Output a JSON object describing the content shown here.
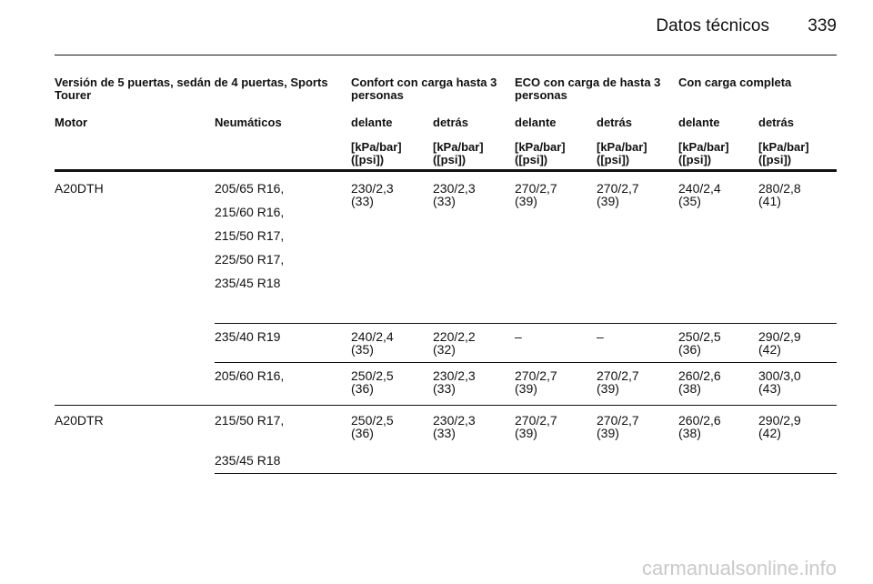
{
  "header": {
    "section": "Datos técnicos",
    "page": "339"
  },
  "table": {
    "group_headers": [
      "Versión de 5 puertas, sedán de 4 puertas, Sports Tourer",
      "Confort con carga hasta 3 personas",
      "ECO con carga de hasta 3 personas",
      "Con carga completa"
    ],
    "col_labels": [
      "Motor",
      "Neumáticos",
      "delante",
      "detrás",
      "delante",
      "detrás",
      "delante",
      "detrás"
    ],
    "unit_label": "[kPa/bar] ([psi])",
    "rows": [
      {
        "motor": "A20DTH",
        "tyres": [
          "205/65 R16,",
          "215/60 R16,",
          "215/50 R17,",
          "225/50 R17,",
          "235/45 R18"
        ],
        "values": [
          "230/2,3 (33)",
          "230/2,3 (33)",
          "270/2,7 (39)",
          "270/2,7 (39)",
          "240/2,4 (35)",
          "280/2,8 (41)"
        ]
      },
      {
        "motor": "",
        "tyres": [
          "235/40 R19"
        ],
        "values": [
          "240/2,4 (35)",
          "220/2,2 (32)",
          "–",
          "–",
          "250/2,5 (36)",
          "290/2,9 (42)"
        ]
      },
      {
        "motor": "",
        "tyres": [
          "205/60 R16,"
        ],
        "values": [
          "250/2,5 (36)",
          "230/2,3 (33)",
          "270/2,7 (39)",
          "270/2,7 (39)",
          "260/2,6 (38)",
          "300/3,0 (43)"
        ]
      },
      {
        "motor": "A20DTR",
        "tyres": [
          "215/50 R17,",
          "235/45 R18"
        ],
        "values": [
          "250/2,5 (36)",
          "230/2,3 (33)",
          "270/2,7 (39)",
          "270/2,7 (39)",
          "260/2,6 (38)",
          "290/2,9 (42)"
        ]
      }
    ]
  },
  "watermark": "carmanualsonline.info"
}
